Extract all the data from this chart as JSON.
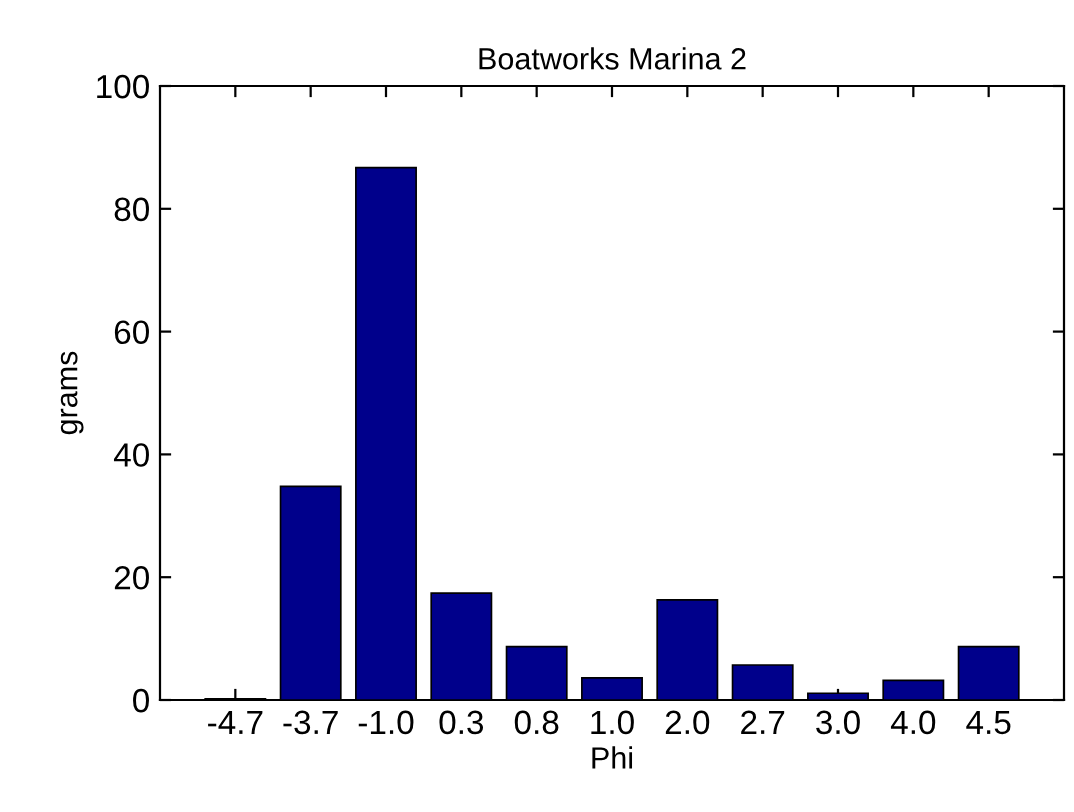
{
  "chart_data": {
    "type": "bar",
    "title": "Boatworks Marina 2",
    "xlabel": "Phi",
    "ylabel": "grams",
    "categories": [
      "-4.7",
      "-3.7",
      "-1.0",
      "0.3",
      "0.8",
      "1.0",
      "2.0",
      "2.7",
      "3.0",
      "4.0",
      "4.5"
    ],
    "values": [
      0.2,
      34.8,
      86.7,
      17.4,
      8.7,
      3.6,
      16.3,
      5.7,
      1.1,
      3.2,
      8.7
    ],
    "color": "#00008b",
    "ylim": [
      0,
      100
    ],
    "yticks": [
      0,
      20,
      40,
      60,
      80,
      100
    ],
    "grid": false
  }
}
